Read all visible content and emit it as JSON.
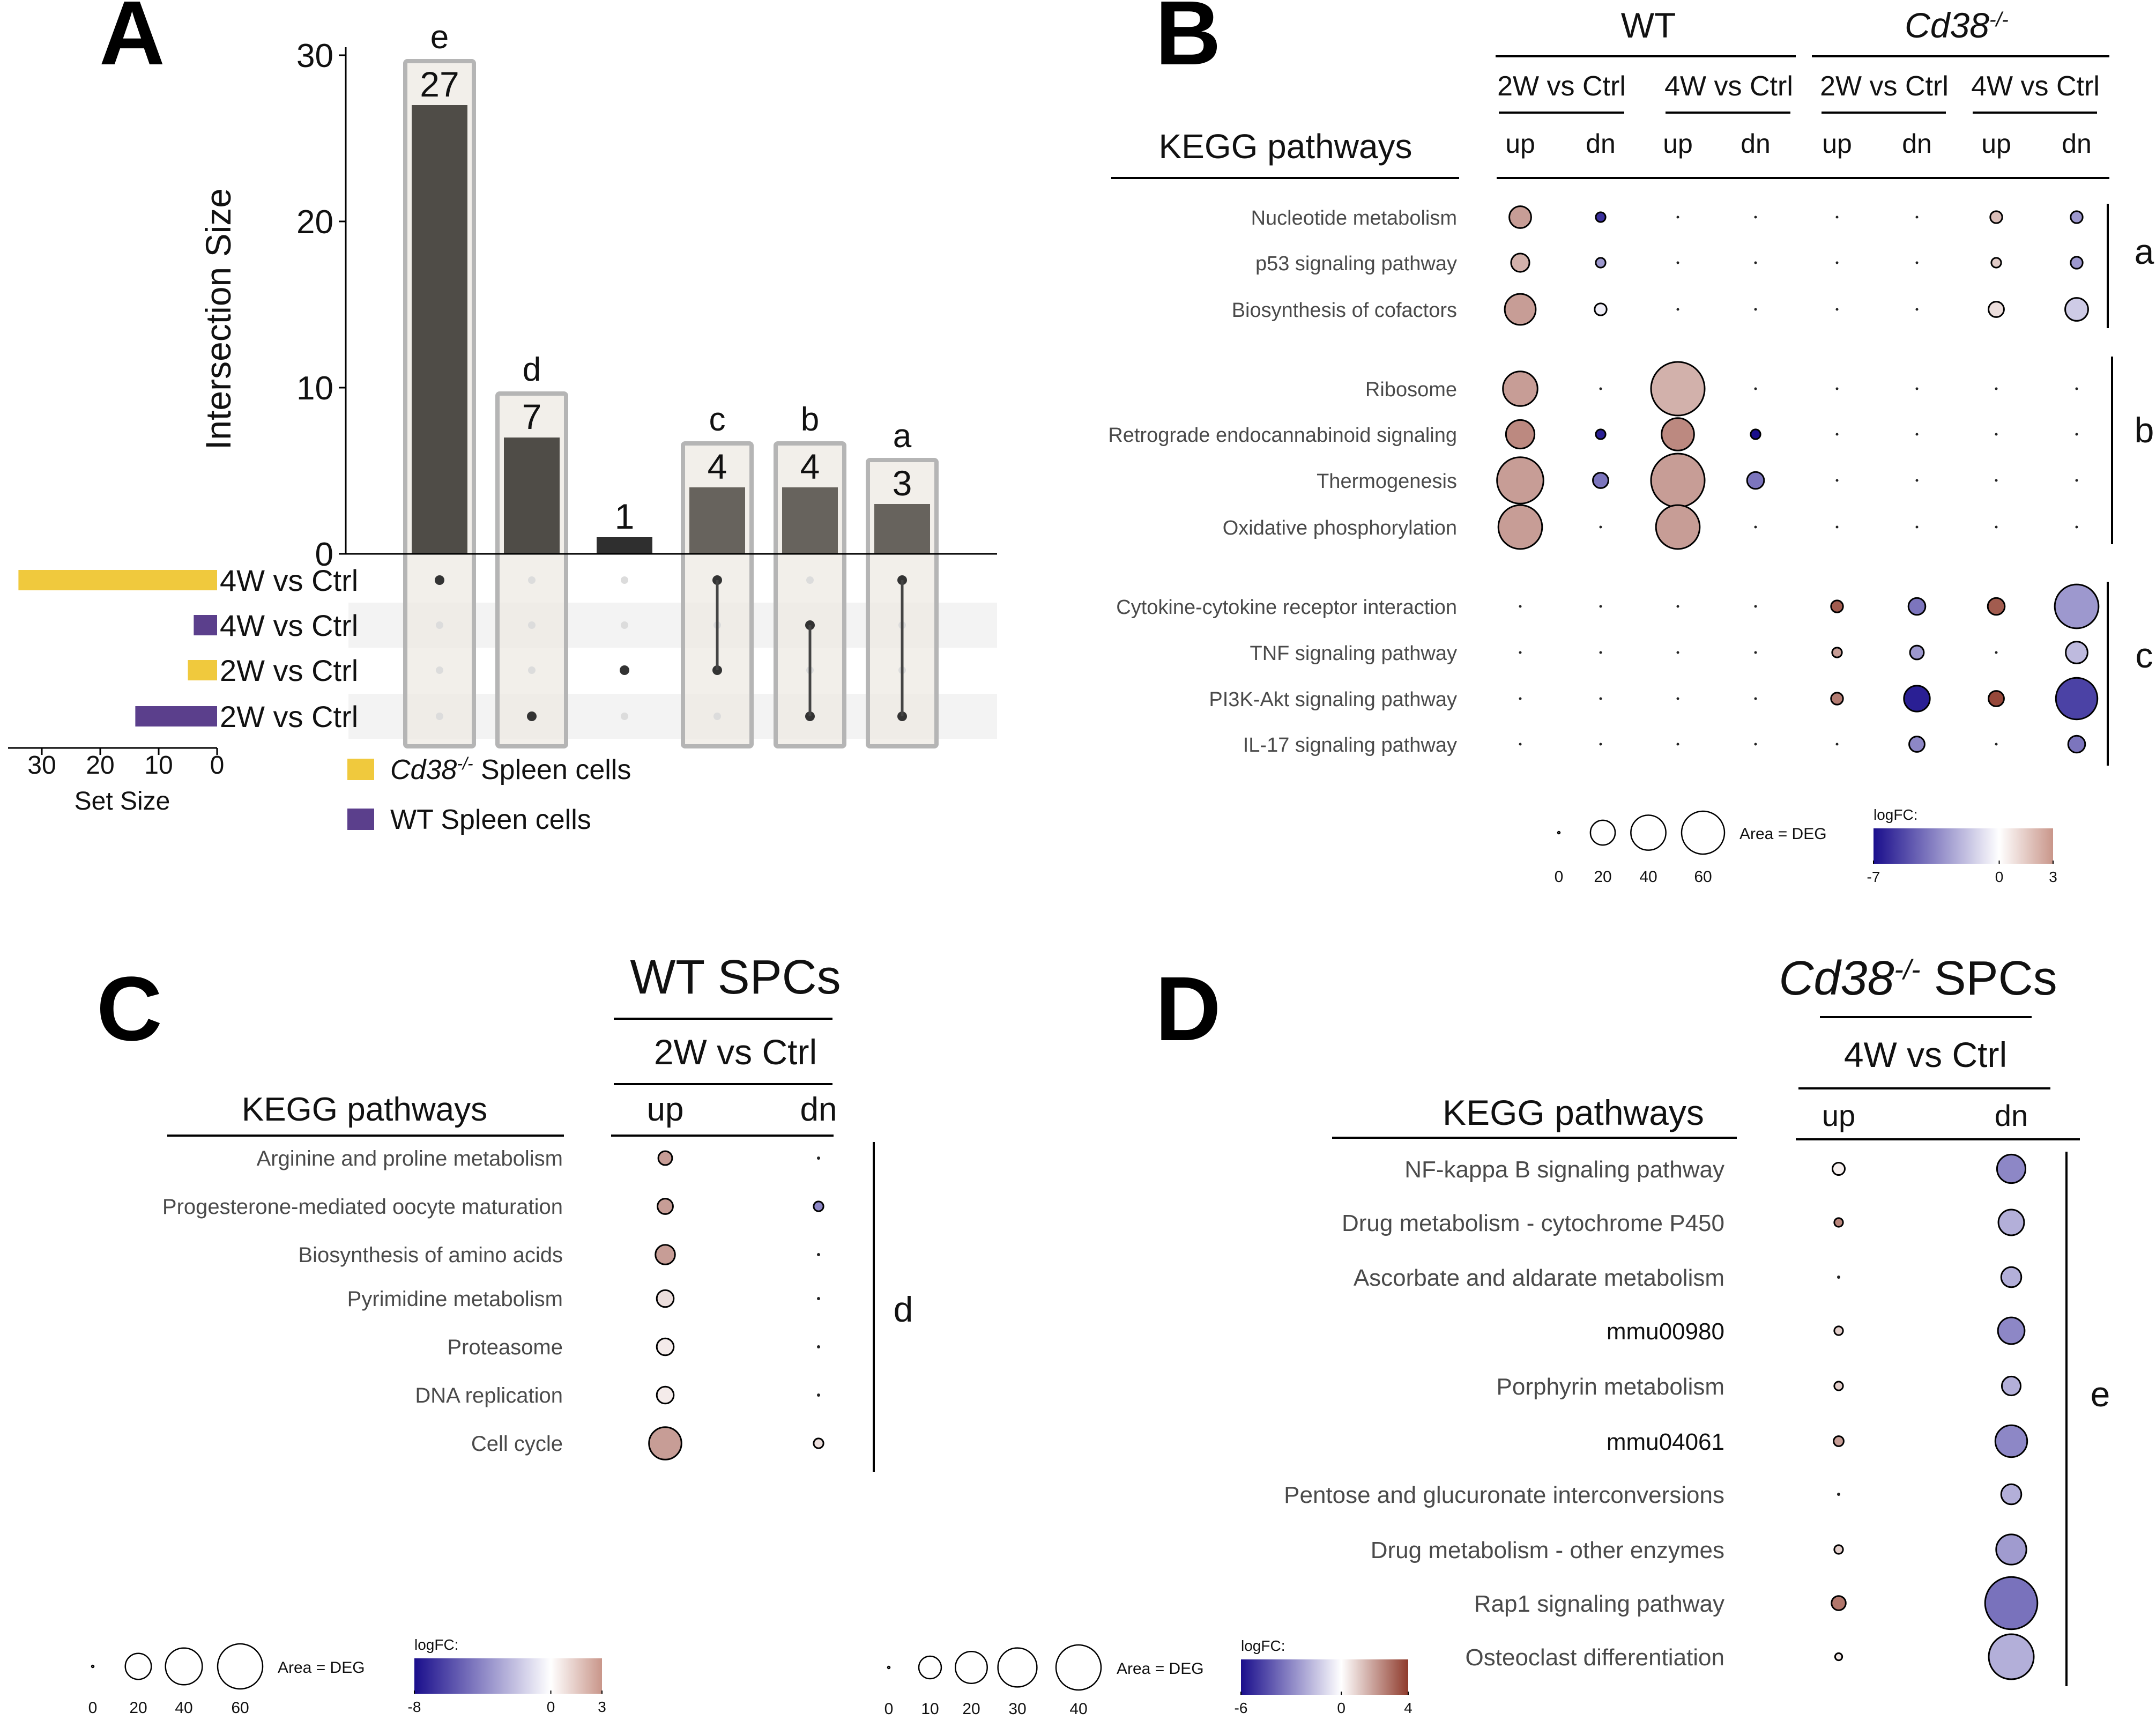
{
  "panels": {
    "A": {
      "letter": "A",
      "chart_data": {
        "type": "bar",
        "title": "",
        "ylabel": "Intersection Size",
        "xlabel": "",
        "ylim": [
          0,
          30
        ],
        "yticks": [
          "0",
          "10",
          "20",
          "30"
        ],
        "intersections": [
          {
            "label": "e",
            "value": 27,
            "value_label": "27",
            "sets": [
              0
            ],
            "highlight": true
          },
          {
            "label": "d",
            "value": 7,
            "value_label": "7",
            "sets": [
              3
            ],
            "highlight": true
          },
          {
            "label": "",
            "value": 1,
            "value_label": "1",
            "sets": [
              2
            ],
            "highlight": false
          },
          {
            "label": "c",
            "value": 4,
            "value_label": "4",
            "sets": [
              0,
              2
            ],
            "highlight": true
          },
          {
            "label": "b",
            "value": 4,
            "value_label": "4",
            "sets": [
              1,
              3
            ],
            "highlight": true
          },
          {
            "label": "a",
            "value": 3,
            "value_label": "3",
            "sets": [
              0,
              3
            ],
            "highlight": true
          }
        ],
        "sets": [
          {
            "name": "4W vs Ctrl",
            "size": 34,
            "group": "cd38"
          },
          {
            "name": "4W vs Ctrl",
            "size": 4,
            "group": "wt"
          },
          {
            "name": "2W vs Ctrl",
            "size": 5,
            "group": "cd38"
          },
          {
            "name": "2W vs Ctrl",
            "size": 14,
            "group": "wt"
          }
        ],
        "set_size_label": "Set Size",
        "set_size_ticks": [
          "30",
          "20",
          "10",
          "0"
        ],
        "set_size_max": 35,
        "legend": [
          {
            "key": "cd38",
            "italic": "Cd38",
            "sup": "-/-",
            "text": " Spleen cells",
            "color": "#f0c93d"
          },
          {
            "key": "wt",
            "italic": "",
            "sup": "",
            "text": "WT Spleen cells",
            "color": "#5b3f8c"
          }
        ]
      }
    },
    "B": {
      "letter": "B",
      "chart_data": {
        "type": "scatter",
        "row_header": "KEGG pathways",
        "groups": [
          {
            "label": "WT",
            "italic": false,
            "sup": ""
          },
          {
            "label": "Cd38",
            "italic": true,
            "sup": "-/-"
          }
        ],
        "comparisons": [
          "2W vs Ctrl",
          "4W vs Ctrl",
          "2W vs Ctrl",
          "4W vs Ctrl"
        ],
        "columns": [
          "up",
          "dn",
          "up",
          "dn",
          "up",
          "dn",
          "up",
          "dn"
        ],
        "clusters": [
          "a",
          "b",
          "c"
        ],
        "rows": [
          {
            "name": "Nucleotide metabolism",
            "cluster": "a",
            "deg": [
              10,
              2,
              0.5,
              0.5,
              0.5,
              0.5,
              3,
              3
            ],
            "logfc": [
              1.5,
              -6,
              0,
              0,
              0,
              0,
              1,
              -3
            ]
          },
          {
            "name": "p53 signaling pathway",
            "cluster": "a",
            "deg": [
              7,
              2,
              0.5,
              0.5,
              0.5,
              0.5,
              2,
              3
            ],
            "logfc": [
              1.2,
              -3,
              0,
              0,
              0,
              0,
              0.8,
              -3
            ]
          },
          {
            "name": "Biosynthesis of cofactors",
            "cluster": "a",
            "deg": [
              20,
              3,
              0.5,
              0.5,
              0.5,
              0.5,
              5,
              11
            ],
            "logfc": [
              1.5,
              -0.5,
              0,
              0,
              0,
              0,
              0.5,
              -1.5
            ]
          },
          {
            "name": "Ribosome",
            "cluster": "b",
            "deg": [
              25,
              0.5,
              60,
              0.5,
              0.5,
              0.5,
              0.5,
              0.5
            ],
            "logfc": [
              1.5,
              0,
              1.2,
              0,
              0,
              0,
              0,
              0
            ]
          },
          {
            "name": "Retrograde endocannabinoid signaling",
            "cluster": "b",
            "deg": [
              17,
              2,
              22,
              2,
              0.5,
              0.5,
              0.5,
              0.5
            ],
            "logfc": [
              1.8,
              -6.5,
              1.8,
              -7,
              0,
              0,
              0,
              0
            ]
          },
          {
            "name": "Thermogenesis",
            "cluster": "b",
            "deg": [
              45,
              5,
              60,
              6,
              0.5,
              0.5,
              0.5,
              0.5
            ],
            "logfc": [
              1.5,
              -4,
              1.5,
              -4,
              0,
              0,
              0,
              0
            ]
          },
          {
            "name": "Oxidative phosphorylation",
            "cluster": "b",
            "deg": [
              40,
              0.5,
              40,
              0.5,
              0.5,
              0.5,
              0.5,
              0.5
            ],
            "logfc": [
              1.5,
              0,
              1.5,
              0,
              0,
              0,
              0,
              0
            ]
          },
          {
            "name": "Cytokine-cytokine receptor interaction",
            "cluster": "c",
            "deg": [
              0.5,
              0.5,
              0.5,
              0.5,
              3,
              6,
              6,
              40
            ],
            "logfc": [
              0,
              0,
              0,
              0,
              2.5,
              -4,
              2.5,
              -3
            ]
          },
          {
            "name": "TNF signaling pathway",
            "cluster": "c",
            "deg": [
              0.5,
              0.5,
              0.5,
              0.5,
              2,
              4,
              0.5,
              10
            ],
            "logfc": [
              0,
              0,
              0,
              0,
              1.5,
              -3,
              0,
              -2
            ]
          },
          {
            "name": "PI3K-Akt signaling pathway",
            "cluster": "c",
            "deg": [
              0.5,
              0.5,
              0.5,
              0.5,
              3,
              14,
              5,
              36
            ],
            "logfc": [
              0,
              0,
              0,
              0,
              2,
              -6.5,
              2.8,
              -5.5
            ]
          },
          {
            "name": "IL-17 signaling pathway",
            "cluster": "c",
            "deg": [
              0.5,
              0.5,
              0.5,
              0.5,
              0.5,
              5,
              0.5,
              6
            ],
            "logfc": [
              0,
              0,
              0,
              0,
              0,
              -3.5,
              0,
              -4
            ]
          }
        ],
        "size_legend": {
          "values": [
            0,
            20,
            40,
            60
          ],
          "labels": [
            "0",
            "20",
            "40",
            "60"
          ],
          "title": "Area = DEG"
        },
        "color_legend": {
          "title": "logFC:",
          "min": -7,
          "max": 3,
          "labels": [
            "-7",
            "0",
            "3"
          ]
        }
      }
    },
    "C": {
      "letter": "C",
      "chart_data": {
        "type": "scatter",
        "title": "WT SPCs",
        "row_header": "KEGG pathways",
        "comparison": "2W vs Ctrl",
        "columns": [
          "up",
          "dn"
        ],
        "cluster": "d",
        "rows": [
          {
            "name": "Arginine and proline metabolism",
            "deg": [
              4,
              0.5
            ],
            "logfc": [
              1.5,
              -6
            ]
          },
          {
            "name": "Progesterone-mediated oocyte maturation",
            "deg": [
              5,
              2
            ],
            "logfc": [
              1.5,
              -4
            ]
          },
          {
            "name": "Biosynthesis of amino acids",
            "deg": [
              8,
              0.5
            ],
            "logfc": [
              1.5,
              -4
            ]
          },
          {
            "name": "Pyrimidine metabolism",
            "deg": [
              6,
              0.5
            ],
            "logfc": [
              0.5,
              -4
            ]
          },
          {
            "name": "Proteasome",
            "deg": [
              6,
              0.5
            ],
            "logfc": [
              0.3,
              -3
            ]
          },
          {
            "name": "DNA replication",
            "deg": [
              6,
              0.3
            ],
            "logfc": [
              0.3,
              -2
            ]
          },
          {
            "name": "Cell cycle",
            "deg": [
              22,
              2
            ],
            "logfc": [
              1.5,
              0.5
            ]
          }
        ],
        "size_legend": {
          "values": [
            0,
            20,
            40,
            60
          ],
          "labels": [
            "0",
            "20",
            "40",
            "60"
          ],
          "title": "Area = DEG"
        },
        "color_legend": {
          "title": "logFC:",
          "min": -8,
          "max": 3,
          "labels": [
            "-8",
            "0",
            "3"
          ]
        }
      }
    },
    "D": {
      "letter": "D",
      "chart_data": {
        "type": "scatter",
        "title_italic": "Cd38",
        "title_sup": "-/-",
        "title_rest": " SPCs",
        "row_header": "KEGG pathways",
        "comparison": "4W vs Ctrl",
        "columns": [
          "up",
          "dn"
        ],
        "cluster": "e",
        "rows": [
          {
            "name": "NF-kappa B signaling pathway",
            "grey": true,
            "deg": [
              3,
              16
            ],
            "logfc": [
              0.3,
              -3
            ]
          },
          {
            "name": "Drug metabolism - cytochrome P450",
            "grey": true,
            "deg": [
              1.5,
              13
            ],
            "logfc": [
              2.5,
              -2
            ]
          },
          {
            "name": "Ascorbate and aldarate metabolism",
            "grey": true,
            "deg": [
              0.5,
              8
            ],
            "logfc": [
              0,
              -2
            ]
          },
          {
            "name": "mmu00980",
            "grey": false,
            "deg": [
              1.5,
              14
            ],
            "logfc": [
              1,
              -3
            ]
          },
          {
            "name": "Porphyrin metabolism",
            "grey": true,
            "deg": [
              1.5,
              7
            ],
            "logfc": [
              1,
              -2
            ]
          },
          {
            "name": "mmu04061",
            "grey": false,
            "deg": [
              2,
              20
            ],
            "logfc": [
              2,
              -3
            ]
          },
          {
            "name": "Pentose and glucuronate interconversions",
            "grey": true,
            "deg": [
              0.5,
              8
            ],
            "logfc": [
              0,
              -2
            ]
          },
          {
            "name": "Drug metabolism - other enzymes",
            "grey": true,
            "deg": [
              1.5,
              18
            ],
            "logfc": [
              1,
              -2.5
            ]
          },
          {
            "name": "Rap1 signaling pathway",
            "grey": true,
            "deg": [
              4,
              54
            ],
            "logfc": [
              2.8,
              -3.5
            ]
          },
          {
            "name": "Osteoclast differentiation",
            "grey": true,
            "deg": [
              1,
              40
            ],
            "logfc": [
              0.5,
              -2
            ]
          }
        ],
        "size_legend": {
          "values": [
            0,
            10,
            20,
            30,
            40
          ],
          "labels": [
            "0",
            "10",
            "20",
            "30",
            "40"
          ],
          "title": "Area = DEG"
        },
        "color_legend": {
          "title": "logFC:",
          "min": -6,
          "max": 4,
          "labels": [
            "-6",
            "0",
            "4"
          ]
        }
      }
    }
  },
  "colors": {
    "neg": "#1a0e8c",
    "mid": "#ffffff",
    "pos": "#8f3b2c",
    "bar_main": "#4f4c47",
    "bar_box": "#eee9e3",
    "cd38": "#f0c93d",
    "wt": "#5b3f8c"
  }
}
